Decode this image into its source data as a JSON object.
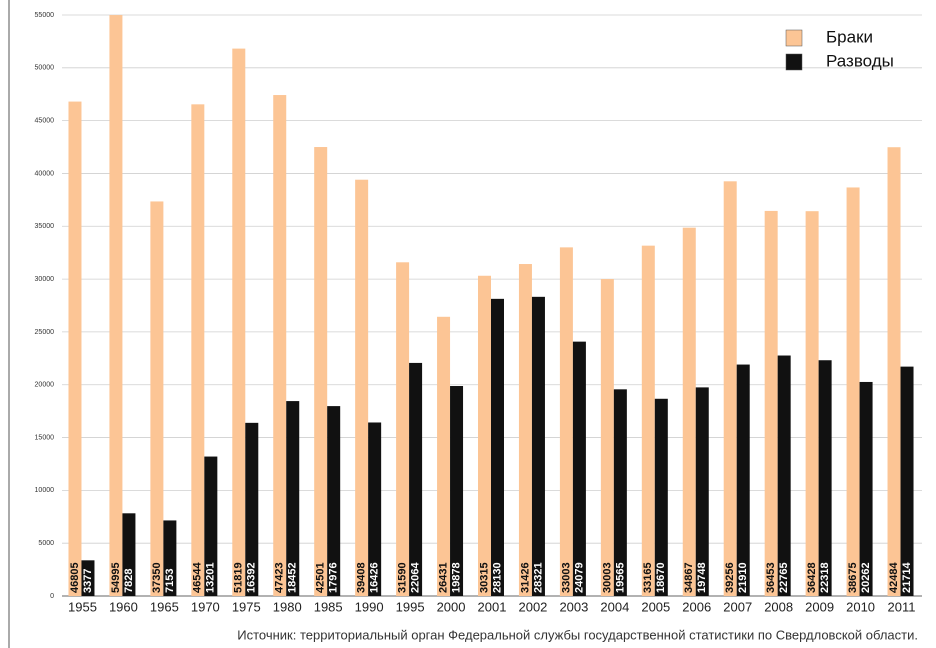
{
  "chart_data": {
    "type": "bar",
    "categories": [
      "1955",
      "1960",
      "1965",
      "1970",
      "1975",
      "1980",
      "1985",
      "1990",
      "1995",
      "2000",
      "2001",
      "2002",
      "2003",
      "2004",
      "2005",
      "2006",
      "2007",
      "2008",
      "2009",
      "2010",
      "2011"
    ],
    "series": [
      {
        "name": "Браки",
        "color": "#fcc595",
        "values": [
          46805,
          54995,
          37350,
          46544,
          51819,
          47423,
          42501,
          39408,
          31590,
          26431,
          30315,
          31426,
          33003,
          30003,
          33165,
          34867,
          39256,
          36453,
          36428,
          38675,
          42484
        ]
      },
      {
        "name": "Разводы",
        "color": "#111111",
        "values": [
          3377,
          7828,
          7153,
          13201,
          16392,
          18452,
          17976,
          16426,
          22064,
          19878,
          28130,
          28321,
          24079,
          19565,
          18670,
          19748,
          21910,
          22765,
          22318,
          20262,
          21714
        ]
      }
    ],
    "ylim": [
      0,
      55000
    ],
    "yticks": [
      0,
      5000,
      10000,
      15000,
      20000,
      25000,
      30000,
      35000,
      40000,
      45000,
      50000,
      55000
    ],
    "grid": true,
    "legend": "top-right",
    "source": "Источник: территориальный орган Федеральной службы государственной статистики по Свердловской области."
  }
}
